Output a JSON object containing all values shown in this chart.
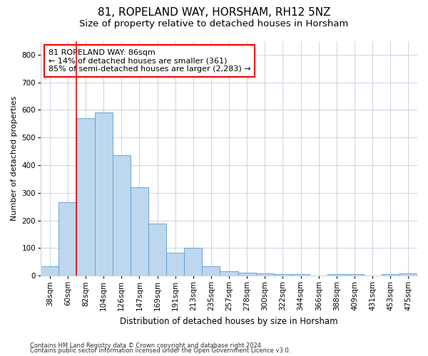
{
  "title1": "81, ROPELAND WAY, HORSHAM, RH12 5NZ",
  "title2": "Size of property relative to detached houses in Horsham",
  "xlabel": "Distribution of detached houses by size in Horsham",
  "ylabel": "Number of detached properties",
  "categories": [
    "38sqm",
    "60sqm",
    "82sqm",
    "104sqm",
    "126sqm",
    "147sqm",
    "169sqm",
    "191sqm",
    "213sqm",
    "235sqm",
    "257sqm",
    "278sqm",
    "300sqm",
    "322sqm",
    "344sqm",
    "366sqm",
    "388sqm",
    "409sqm",
    "431sqm",
    "453sqm",
    "475sqm"
  ],
  "bar_values": [
    35,
    265,
    570,
    590,
    435,
    320,
    188,
    83,
    100,
    35,
    15,
    10,
    7,
    5,
    5,
    0,
    5,
    5,
    0,
    5,
    7
  ],
  "bar_color": "#BDD7EE",
  "bar_edge_color": "#5B9BD5",
  "annotation_line1": "81 ROPELAND WAY: 86sqm",
  "annotation_line2": "← 14% of detached houses are smaller (361)",
  "annotation_line3": "85% of semi-detached houses are larger (2,283) →",
  "annotation_box_color": "white",
  "annotation_box_edge_color": "red",
  "vline_x_index": 1.5,
  "vline_color": "red",
  "ylim": [
    0,
    850
  ],
  "yticks": [
    0,
    100,
    200,
    300,
    400,
    500,
    600,
    700,
    800
  ],
  "footer1": "Contains HM Land Registry data © Crown copyright and database right 2024.",
  "footer2": "Contains public sector information licensed under the Open Government Licence v3.0.",
  "bg_color": "#FFFFFF",
  "grid_color": "#C8D4E3",
  "title1_fontsize": 11,
  "title2_fontsize": 9.5,
  "ylabel_fontsize": 8,
  "xlabel_fontsize": 8.5,
  "tick_fontsize": 7.5,
  "annotation_fontsize": 8,
  "footer_fontsize": 6
}
